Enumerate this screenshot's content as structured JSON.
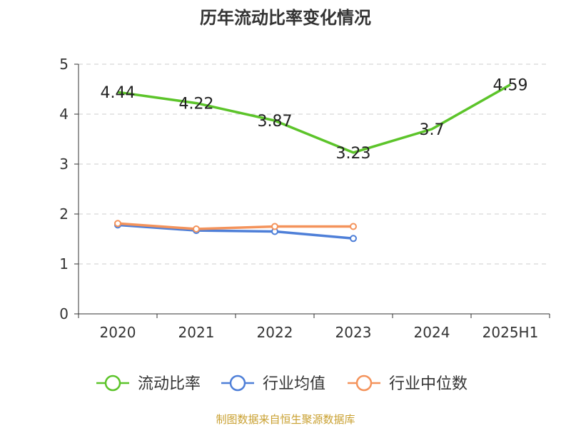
{
  "chart_data": {
    "type": "line",
    "title": "历年流动比率变化情况",
    "categories": [
      "2020",
      "2021",
      "2022",
      "2023",
      "2024",
      "2025H1"
    ],
    "ylim": [
      0,
      5
    ],
    "yticks": [
      "0",
      "1",
      "2",
      "3",
      "4",
      "5"
    ],
    "grid": true,
    "legend_placement": "bottom",
    "series": [
      {
        "name": "流动比率",
        "color": "#5cc42a",
        "values": [
          4.44,
          4.22,
          3.87,
          3.23,
          3.7,
          4.59
        ],
        "labels": [
          "4.44",
          "4.22",
          "3.87",
          "3.23",
          "3.7",
          "4.59"
        ],
        "show_markers": false
      },
      {
        "name": "行业均值",
        "color": "#4e7fd8",
        "values": [
          1.78,
          1.67,
          1.65,
          1.51,
          null,
          null
        ],
        "show_markers": true
      },
      {
        "name": "行业中位数",
        "color": "#f4935b",
        "values": [
          1.81,
          1.7,
          1.75,
          1.75,
          null,
          null
        ],
        "show_markers": true
      }
    ]
  },
  "source_note": "制图数据来自恒生聚源数据库"
}
